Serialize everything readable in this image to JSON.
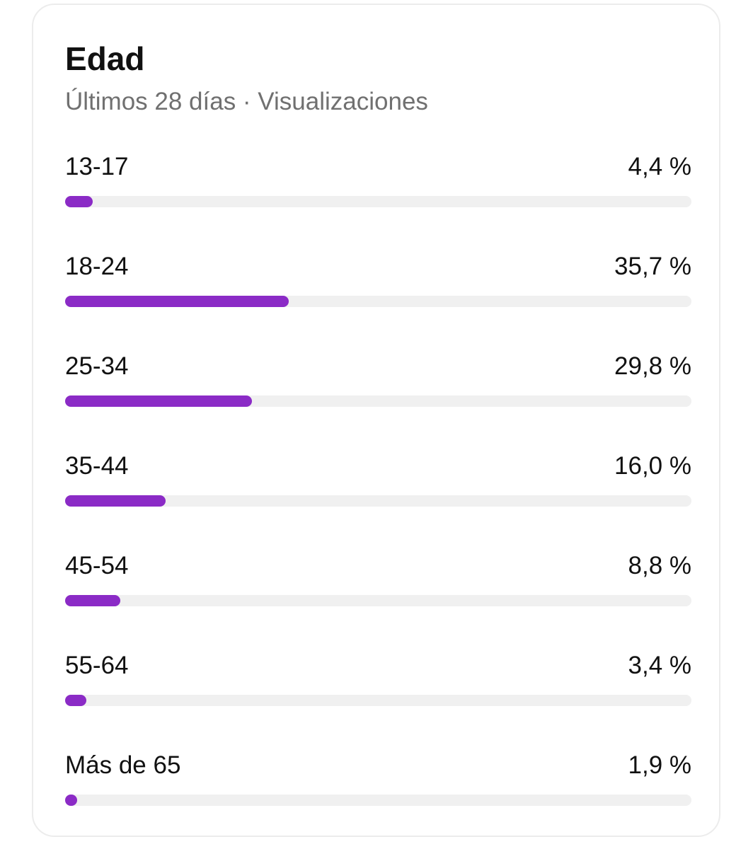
{
  "card": {
    "title": "Edad",
    "subtitle": "Últimos 28 días · Visualizaciones"
  },
  "accent_color": "#8b2bc6",
  "track_color": "#f0f0f0",
  "rows": [
    {
      "label": "13-17",
      "value_text": "4,4 %",
      "fraction": 0.044
    },
    {
      "label": "18-24",
      "value_text": "35,7 %",
      "fraction": 0.357
    },
    {
      "label": "25-34",
      "value_text": "29,8 %",
      "fraction": 0.298
    },
    {
      "label": "35-44",
      "value_text": "16,0 %",
      "fraction": 0.16
    },
    {
      "label": "45-54",
      "value_text": "8,8 %",
      "fraction": 0.088
    },
    {
      "label": "55-64",
      "value_text": "3,4 %",
      "fraction": 0.034
    },
    {
      "label": "Más de 65",
      "value_text": "1,9 %",
      "fraction": 0.019
    }
  ]
}
